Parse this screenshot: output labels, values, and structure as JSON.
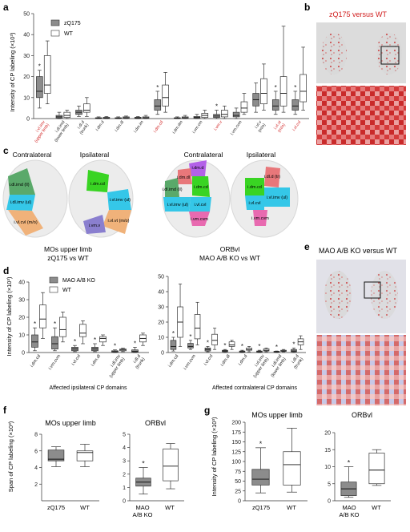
{
  "panels": {
    "a": "a",
    "b": "b",
    "c": "c",
    "d": "d",
    "e": "e",
    "f": "f",
    "g": "g"
  },
  "panel_a": {
    "ylabel": "Intensity of CP labeling (×10³)",
    "yticks": [
      "0",
      "10",
      "20",
      "30",
      "40",
      "50"
    ],
    "legend": [
      "zQ175",
      "WT"
    ],
    "colors": {
      "zq": "#8c8c8c",
      "wt": "#ffffff",
      "red": "#d11f1f"
    }
  },
  "panel_b": {
    "title": "zQ175 versus WT"
  },
  "panel_e": {
    "title": "MAO A/B KO versus WT"
  },
  "panel_c": {
    "left_contra": "Contralateral",
    "left_ipsi": "Ipsilateral",
    "right_contra": "Contralateral",
    "right_ipsi": "Ipsilateral",
    "caption_left_1": "MOs upper limb",
    "caption_left_2": "zQ175 vs WT",
    "caption_right_1": "ORBvl",
    "caption_right_2": "MAO A/B KO vs WT",
    "regions": {
      "imd_ll": "i.dl.imd (ll)",
      "iimv_ul": "i.dl.imv (ul)",
      "ivlcvl_mo": "i.vl.cvl (m/o)",
      "idmcd": "i.dm.cd",
      "ivlimv_ul": "i.vl.imv (ul)",
      "ivlvt_mo": "i.vl.vt (m/o)",
      "ivmv": "i.vm.v",
      "idmd": "i.dm.d",
      "idmdl": "i.dm.dl",
      "idld_tr": "i.dl.d (tr)",
      "idlimd_ll": "i.dl.imd (ll)",
      "idlcd": "i.dm.cd",
      "ivlimv_ul2": "i.vl.imv (ul)",
      "ivmcvm": "i.vm.cvm",
      "ivlcvl": "i.vl.cvl"
    }
  },
  "panel_d": {
    "ylabel": "Intensity of CP labeling (×10³)",
    "yticks_left": [
      "0",
      "10",
      "20",
      "30",
      "40"
    ],
    "yticks_right": [
      "0",
      "10",
      "20",
      "30",
      "40",
      "50"
    ],
    "legend": [
      "MAO A/B KO",
      "WT"
    ],
    "xlabel_left": "Affected ipsilateral CP domains",
    "xlabel_right": "Affected contralateral CP domains"
  },
  "panel_f": {
    "ylabel": "Span of CP labeling (×10³)",
    "left_title": "MOs upper limb",
    "right_title": "ORBvl",
    "left_ticks": [
      "2",
      "4",
      "6",
      "8"
    ],
    "right_ticks": [
      "0",
      "1",
      "2",
      "3",
      "4",
      "5"
    ],
    "left_x": [
      "zQ175",
      "WT"
    ],
    "right_x1": [
      "MAO",
      "A/B KO"
    ],
    "right_x2": "WT"
  },
  "panel_g": {
    "ylabel": "Intensity of CP labeling (×10³)",
    "left_title": "MOs upper limb",
    "right_title": "ORBvl",
    "left_ticks": [
      "0",
      "25",
      "50",
      "75",
      "100",
      "125",
      "150",
      "175",
      "200"
    ],
    "right_ticks": [
      "0",
      "5",
      "10",
      "15",
      "20"
    ],
    "left_x": [
      "zQ175",
      "WT"
    ],
    "right_x1": [
      "MAO",
      "A/B KO"
    ],
    "right_x2": "WT"
  },
  "chart_data": [
    {
      "panel": "a",
      "type": "box",
      "ylim": [
        0,
        50
      ],
      "categories": [
        "i.vl.imv (upper limb)",
        "i.dl.imd (lower limb)",
        "i.dl.d (trunk)",
        "i.dm.d",
        "i.dm.dl",
        "i.dm.im",
        "i.dm.cd",
        "i.dm.dm",
        "i.vm.cm",
        "i.vm.v",
        "i.vm.cvm",
        "i.vl.v (m/o)",
        "i.vl.vt (m/o)",
        "i.vl.cvl"
      ],
      "label_lines": [
        [
          "i.vl.imv",
          "(upper limb)"
        ],
        [
          "i.dl.imd",
          "(lower limb)"
        ],
        [
          "i.dl.d",
          "(trunk)"
        ],
        [
          "i.dm.d"
        ],
        [
          "i.dm.dl"
        ],
        [
          "i.dm.im"
        ],
        [
          "i.dm.cd"
        ],
        [
          "i.dm.dm"
        ],
        [
          "i.vm.cm"
        ],
        [
          "i.vm.v"
        ],
        [
          "i.vm.cvm"
        ],
        [
          "i.vl.v",
          "(m/o)"
        ],
        [
          "i.vl.vt",
          "(m/o)"
        ],
        [
          "i.vl.cvl"
        ]
      ],
      "highlighted": [
        true,
        false,
        false,
        false,
        false,
        false,
        true,
        false,
        false,
        true,
        false,
        false,
        true,
        true
      ],
      "significant": [
        true,
        false,
        false,
        false,
        false,
        false,
        true,
        false,
        false,
        true,
        false,
        false,
        true,
        true
      ],
      "series": [
        {
          "name": "zQ175",
          "boxes": [
            [
              5,
              10,
              13,
              20,
              23
            ],
            [
              0,
              0.3,
              0.8,
              1.5,
              3
            ],
            [
              1,
              2,
              3,
              4,
              6
            ],
            [
              0,
              0.1,
              0.2,
              0.4,
              0.8
            ],
            [
              0,
              0.1,
              0.2,
              0.4,
              0.8
            ],
            [
              0,
              0.1,
              0.3,
              0.6,
              1
            ],
            [
              2,
              4,
              6,
              9,
              13
            ],
            [
              0,
              0.1,
              0.2,
              0.4,
              0.8
            ],
            [
              0,
              0.2,
              0.5,
              1,
              2
            ],
            [
              0,
              0.5,
              1.2,
              2,
              4
            ],
            [
              0,
              0.8,
              1.5,
              3,
              5
            ],
            [
              3,
              6,
              9,
              12,
              17
            ],
            [
              2,
              4,
              6,
              9,
              13
            ],
            [
              2,
              4,
              6,
              9,
              13
            ]
          ]
        },
        {
          "name": "WT",
          "boxes": [
            [
              7,
              12,
              16,
              30,
              37
            ],
            [
              0,
              0.5,
              1.5,
              3,
              4
            ],
            [
              1,
              3,
              4,
              7,
              10
            ],
            [
              0,
              0.1,
              0.3,
              0.6,
              1
            ],
            [
              0,
              0.2,
              0.4,
              0.8,
              1.2
            ],
            [
              0,
              0.2,
              0.4,
              0.8,
              1.5
            ],
            [
              3,
              6,
              10,
              16,
              22
            ],
            [
              0,
              0.2,
              0.4,
              0.8,
              1.5
            ],
            [
              0,
              0.5,
              1.5,
              2.5,
              4
            ],
            [
              0,
              0.8,
              2,
              4,
              6
            ],
            [
              2,
              3,
              5,
              8,
              12
            ],
            [
              4,
              7,
              12,
              19,
              26
            ],
            [
              3,
              6,
              12,
              20,
              44
            ],
            [
              4,
              8,
              13,
              21,
              34
            ]
          ]
        }
      ]
    },
    {
      "panel": "d-left",
      "type": "box",
      "ylim": [
        0,
        40
      ],
      "categories": [
        "i.dm.cd",
        "i.vm.cvm",
        "i.vl.cvl",
        "i.dm.dl",
        "i.dl.imv (upper limb)",
        "i.dl.d (trunk)"
      ],
      "label_lines": [
        [
          "i.dm.cd"
        ],
        [
          "i.vm.cvm"
        ],
        [
          "i.vl.cvl"
        ],
        [
          "i.dm.dl"
        ],
        [
          "i.dl.imv",
          "(upper limb)"
        ],
        [
          "i.dl.d",
          "(trunk)"
        ]
      ],
      "significant": [
        true,
        true,
        true,
        true,
        true,
        true
      ],
      "series": [
        {
          "name": "MAO A/B KO",
          "boxes": [
            [
              1,
              3,
              6,
              10,
              14
            ],
            [
              1,
              2,
              5,
              9,
              14
            ],
            [
              0.5,
              1,
              2,
              3,
              4
            ],
            [
              0.5,
              1,
              2,
              3,
              5
            ],
            [
              0,
              0.3,
              0.5,
              1,
              1.5
            ],
            [
              0,
              0.3,
              0.6,
              1.5,
              3
            ]
          ]
        },
        {
          "name": "WT",
          "boxes": [
            [
              8,
              14,
              19,
              27,
              34
            ],
            [
              6,
              9,
              13,
              20,
              23
            ],
            [
              5,
              9,
              11,
              16,
              18
            ],
            [
              4,
              6,
              8,
              9,
              10
            ],
            [
              0.5,
              1,
              1.5,
              2,
              2.5
            ],
            [
              4,
              6,
              8,
              10,
              11
            ]
          ]
        }
      ]
    },
    {
      "panel": "d-right",
      "type": "box",
      "ylim": [
        0,
        50
      ],
      "categories": [
        "i.dm.cd",
        "i.vm.cvm",
        "i.vl.cvl",
        "i.dm.dl",
        "i.dm.d",
        "i.vl.imv (upper limb)",
        "i.dl.imd (lower limb)",
        "i.dl.d (trunk)"
      ],
      "label_lines": [
        [
          "i.dm.cd"
        ],
        [
          "i.vm.cvm"
        ],
        [
          "i.vl.cvl"
        ],
        [
          "i.dm.dl"
        ],
        [
          "i.dm.d"
        ],
        [
          "i.vl.imv",
          "(upper limb)"
        ],
        [
          "i.dl.imd",
          "(lower limb)"
        ],
        [
          "i.dl.d",
          "(trunk)"
        ]
      ],
      "significant": [
        true,
        true,
        true,
        true,
        true,
        true,
        true,
        true
      ],
      "series": [
        {
          "name": "MAO A/B KO",
          "boxes": [
            [
              1,
              2,
              4,
              8,
              10
            ],
            [
              2,
              3,
              4,
              6,
              8
            ],
            [
              0.5,
              1,
              2,
              3,
              4
            ],
            [
              0,
              0.5,
              1,
              1.5,
              2
            ],
            [
              0,
              0.3,
              0.5,
              1,
              1.5
            ],
            [
              0,
              0.3,
              0.5,
              1,
              1.5
            ],
            [
              0,
              0.3,
              0.5,
              0.8,
              1
            ],
            [
              0,
              0.5,
              1,
              2,
              3
            ]
          ]
        },
        {
          "name": "WT",
          "boxes": [
            [
              4,
              10,
              20,
              30,
              45
            ],
            [
              5,
              9,
              16,
              25,
              33
            ],
            [
              2,
              5,
              8,
              12,
              16
            ],
            [
              2,
              4,
              5,
              7,
              8
            ],
            [
              0.5,
              1.5,
              2,
              3,
              4
            ],
            [
              0.5,
              1,
              1.5,
              2.5,
              3
            ],
            [
              0.5,
              0.8,
              1,
              1.5,
              2
            ],
            [
              2,
              5,
              7,
              9,
              11
            ]
          ]
        }
      ]
    },
    {
      "panel": "f-left",
      "type": "box",
      "ylim": [
        0,
        8
      ],
      "categories": [
        "zQ175",
        "WT"
      ],
      "boxes": [
        [
          4.1,
          4.8,
          5,
          6.1,
          6.5
        ],
        [
          4.1,
          4.8,
          5.8,
          6,
          6.8
        ]
      ],
      "fills": [
        "#8c8c8c",
        "#ffffff"
      ],
      "significant": [
        false,
        false
      ]
    },
    {
      "panel": "f-right",
      "type": "box",
      "ylim": [
        0,
        5
      ],
      "categories": [
        "MAO A/B KO",
        "WT"
      ],
      "boxes": [
        [
          0.5,
          1.1,
          1.4,
          1.7,
          2.5
        ],
        [
          0.9,
          1.5,
          2.6,
          3.9,
          4.3
        ]
      ],
      "fills": [
        "#8c8c8c",
        "#ffffff"
      ],
      "significant": [
        true,
        false
      ]
    },
    {
      "panel": "g-left",
      "type": "box",
      "ylim": [
        0,
        200
      ],
      "categories": [
        "zQ175",
        "WT"
      ],
      "boxes": [
        [
          20,
          40,
          55,
          80,
          135
        ],
        [
          22,
          40,
          92,
          125,
          185
        ]
      ],
      "fills": [
        "#8c8c8c",
        "#ffffff"
      ],
      "significant": [
        true,
        false
      ]
    },
    {
      "panel": "g-right",
      "type": "box",
      "ylim": [
        0,
        20
      ],
      "categories": [
        "MAO A/B KO",
        "WT"
      ],
      "boxes": [
        [
          1,
          1.5,
          3.5,
          5.5,
          10
        ],
        [
          4.5,
          5,
          9,
          14,
          15
        ]
      ],
      "fills": [
        "#8c8c8c",
        "#ffffff"
      ],
      "significant": [
        true,
        false
      ]
    }
  ]
}
